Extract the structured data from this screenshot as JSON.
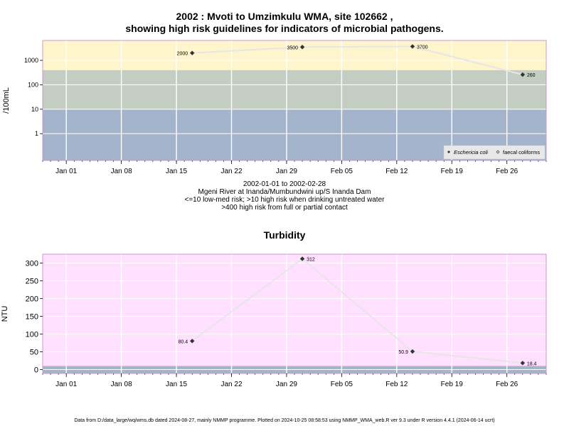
{
  "header": {
    "title_line1": "2002 : Mvoti to Umzimkulu WMA, site 102662 ,",
    "title_line2": "showing high risk guidelines for indicators of microbial pathogens."
  },
  "subtitle": {
    "line1": "2002-01-01 to 2002-02-28",
    "line2": "Mgeni River at Inanda/Mumbundwini up/S Inanda Dam",
    "line3": "<=10 low-med risk; >10 high risk when drinking untreated water",
    "line4": ">400 high risk from full or partial contact"
  },
  "footer": {
    "text": "Data from D:/data_large/wq/wms.db dated 2024-08-27, mainly NMMP programme. Plotted on 2024-10-25 08:58:53 using NMMP_WMA_web.R ver 9.3 under R version 4.4.1 (2024-06-14 ucrt)"
  },
  "colors": {
    "band_high": "#fff5cc",
    "band_mid": "#c4cdc1",
    "band_low": "#a3b4cc",
    "turbidity_bg": "#ffe0ff",
    "turbidity_low": "#a3b4cc",
    "line": "#e6e6e6",
    "point": "#333333",
    "frame": "#cc99cc"
  },
  "chart_data": [
    {
      "type": "line",
      "ylabel": "/100mL",
      "yscale": "log",
      "ylim": [
        0.08,
        6500
      ],
      "yticks": [
        1,
        10,
        100,
        1000
      ],
      "ytick_labels": [
        "1",
        "10",
        "100",
        "1000"
      ],
      "x_range": [
        "2001-12-29",
        "2002-03-03"
      ],
      "xticks": [
        "2002-01-01",
        "2002-01-08",
        "2002-01-15",
        "2002-01-22",
        "2002-01-29",
        "2002-02-05",
        "2002-02-12",
        "2002-02-19",
        "2002-02-26"
      ],
      "xtick_labels": [
        "Jan 01",
        "Jan 08",
        "Jan 15",
        "Jan 22",
        "Jan 29",
        "Feb 05",
        "Feb 12",
        "Feb 19",
        "Feb 26"
      ],
      "bands": [
        {
          "from": 0.08,
          "to": 10,
          "color": "#a3b4cc"
        },
        {
          "from": 10,
          "to": 400,
          "color": "#c4cdc1"
        },
        {
          "from": 400,
          "to": 6500,
          "color": "#fff5cc"
        }
      ],
      "series": [
        {
          "name": "faecal coliforms",
          "x": [
            "2002-01-17",
            "2002-01-31",
            "2002-02-14",
            "2002-02-28"
          ],
          "values": [
            2000,
            3500,
            3700,
            260
          ],
          "labels": [
            "2000",
            "3500",
            "3700",
            "260"
          ]
        }
      ],
      "legend": {
        "position": "bottom-right",
        "entries": [
          "Eschericia coli",
          "faecal coliforms"
        ]
      }
    },
    {
      "type": "line",
      "title": "Turbidity",
      "ylabel": "NTU",
      "ylim": [
        -11,
        325
      ],
      "yticks": [
        0,
        50,
        100,
        150,
        200,
        250,
        300
      ],
      "ytick_labels": [
        "0",
        "50",
        "100",
        "150",
        "200",
        "250",
        "300"
      ],
      "x_range": [
        "2001-12-29",
        "2002-03-03"
      ],
      "xticks": [
        "2002-01-01",
        "2002-01-08",
        "2002-01-15",
        "2002-01-22",
        "2002-01-29",
        "2002-02-05",
        "2002-02-12",
        "2002-02-19",
        "2002-02-26"
      ],
      "xtick_labels": [
        "Jan 01",
        "Jan 08",
        "Jan 15",
        "Jan 22",
        "Jan 29",
        "Feb 05",
        "Feb 12",
        "Feb 19",
        "Feb 26"
      ],
      "bands": [
        {
          "from": -11,
          "to": 10,
          "color": "#a3b4cc"
        },
        {
          "from": 10,
          "to": 325,
          "color": "#ffe0ff"
        }
      ],
      "series": [
        {
          "name": "",
          "x": [
            "2002-01-17",
            "2002-01-31",
            "2002-02-14",
            "2002-02-28"
          ],
          "values": [
            80.4,
            312,
            50.9,
            18.4
          ],
          "labels": [
            "80.4",
            "312",
            "50.9",
            "18.4"
          ]
        }
      ]
    }
  ]
}
